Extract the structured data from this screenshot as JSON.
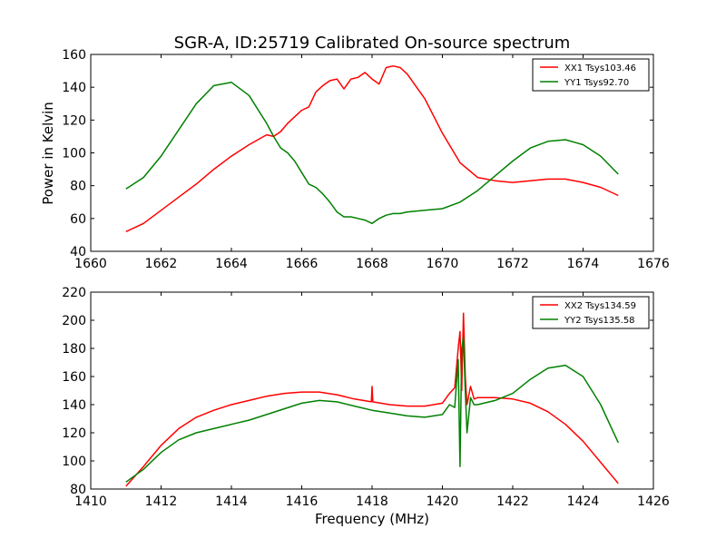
{
  "chart_data": [
    {
      "type": "line",
      "title": "SGR-A, ID:25719 Calibrated On-source spectrum",
      "xlabel": "",
      "ylabel": "Power in Kelvin",
      "xlim": [
        1660,
        1676
      ],
      "ylim": [
        40,
        160
      ],
      "xticks": [
        1660,
        1662,
        1664,
        1666,
        1668,
        1670,
        1672,
        1674,
        1676
      ],
      "yticks": [
        40,
        60,
        80,
        100,
        120,
        140,
        160
      ],
      "grid": false,
      "legend_position": "top-right",
      "series": [
        {
          "name": "XX1 Tsys103.46",
          "color": "#ff0000",
          "x": [
            1661.0,
            1661.5,
            1662.0,
            1662.5,
            1663.0,
            1663.5,
            1664.0,
            1664.5,
            1665.0,
            1665.2,
            1665.4,
            1665.6,
            1665.8,
            1666.0,
            1666.2,
            1666.4,
            1666.6,
            1666.8,
            1667.0,
            1667.2,
            1667.4,
            1667.6,
            1667.8,
            1668.0,
            1668.2,
            1668.4,
            1668.6,
            1668.8,
            1669.0,
            1669.5,
            1670.0,
            1670.5,
            1671.0,
            1671.5,
            1672.0,
            1672.5,
            1673.0,
            1673.5,
            1674.0,
            1674.5,
            1675.0
          ],
          "y": [
            52,
            57,
            65,
            73,
            81,
            90,
            98,
            105,
            111,
            110,
            113,
            118,
            122,
            126,
            128,
            137,
            141,
            144,
            145,
            139,
            145,
            146,
            149,
            145,
            142,
            152,
            153,
            152,
            148,
            133,
            112,
            94,
            85,
            83,
            82,
            83,
            84,
            84,
            82,
            79,
            74
          ]
        },
        {
          "name": "YY1 Tsys92.70",
          "color": "#008000",
          "x": [
            1661.0,
            1661.5,
            1662.0,
            1662.5,
            1663.0,
            1663.5,
            1664.0,
            1664.5,
            1665.0,
            1665.2,
            1665.4,
            1665.6,
            1665.8,
            1666.0,
            1666.2,
            1666.4,
            1666.6,
            1666.8,
            1667.0,
            1667.2,
            1667.4,
            1667.6,
            1667.8,
            1668.0,
            1668.2,
            1668.4,
            1668.6,
            1668.8,
            1669.0,
            1669.5,
            1670.0,
            1670.5,
            1671.0,
            1671.5,
            1672.0,
            1672.5,
            1673.0,
            1673.5,
            1674.0,
            1674.5,
            1675.0
          ],
          "y": [
            78,
            85,
            98,
            114,
            130,
            141,
            143,
            135,
            118,
            110,
            103,
            100,
            95,
            88,
            81,
            79,
            75,
            70,
            64,
            61,
            61,
            60,
            59,
            57,
            60,
            62,
            63,
            63,
            64,
            65,
            66,
            70,
            77,
            86,
            95,
            103,
            107,
            108,
            105,
            98,
            87
          ]
        }
      ]
    },
    {
      "type": "line",
      "title": "",
      "xlabel": "Frequency (MHz)",
      "ylabel": "",
      "xlim": [
        1410,
        1426
      ],
      "ylim": [
        80,
        220
      ],
      "xticks": [
        1410,
        1412,
        1414,
        1416,
        1418,
        1420,
        1422,
        1424,
        1426
      ],
      "yticks": [
        80,
        100,
        120,
        140,
        160,
        180,
        200,
        220
      ],
      "grid": false,
      "legend_position": "top-right",
      "series": [
        {
          "name": "XX2 Tsys134.59",
          "color": "#ff0000",
          "x": [
            1411.0,
            1411.5,
            1412.0,
            1412.5,
            1413.0,
            1413.5,
            1414.0,
            1414.5,
            1415.0,
            1415.5,
            1416.0,
            1416.5,
            1417.0,
            1417.5,
            1417.98,
            1418.0,
            1418.02,
            1418.5,
            1419.0,
            1419.5,
            1420.0,
            1420.2,
            1420.35,
            1420.45,
            1420.5,
            1420.55,
            1420.6,
            1420.65,
            1420.7,
            1420.8,
            1420.9,
            1421.0,
            1421.5,
            1422.0,
            1422.5,
            1423.0,
            1423.5,
            1424.0,
            1424.5,
            1425.0
          ],
          "y": [
            82,
            96,
            111,
            123,
            131,
            136,
            140,
            143,
            146,
            148,
            149,
            149,
            147,
            144,
            142,
            153,
            142,
            140,
            139,
            139,
            141,
            148,
            152,
            180,
            192,
            150,
            205,
            160,
            140,
            153,
            144,
            145,
            145,
            144,
            141,
            135,
            126,
            114,
            99,
            84
          ]
        },
        {
          "name": "YY2 Tsys135.58",
          "color": "#008000",
          "x": [
            1411.0,
            1411.5,
            1412.0,
            1412.5,
            1413.0,
            1413.5,
            1414.0,
            1414.5,
            1415.0,
            1415.5,
            1416.0,
            1416.5,
            1417.0,
            1417.5,
            1418.0,
            1418.5,
            1419.0,
            1419.5,
            1420.0,
            1420.2,
            1420.35,
            1420.45,
            1420.5,
            1420.55,
            1420.6,
            1420.65,
            1420.7,
            1420.8,
            1420.9,
            1421.0,
            1421.5,
            1422.0,
            1422.5,
            1423.0,
            1423.5,
            1424.0,
            1424.5,
            1425.0
          ],
          "y": [
            85,
            94,
            106,
            115,
            120,
            123,
            126,
            129,
            133,
            137,
            141,
            143,
            142,
            139,
            136,
            134,
            132,
            131,
            133,
            140,
            138,
            172,
            96,
            180,
            188,
            150,
            120,
            145,
            140,
            140,
            143,
            148,
            158,
            166,
            168,
            160,
            140,
            113
          ]
        }
      ]
    }
  ]
}
